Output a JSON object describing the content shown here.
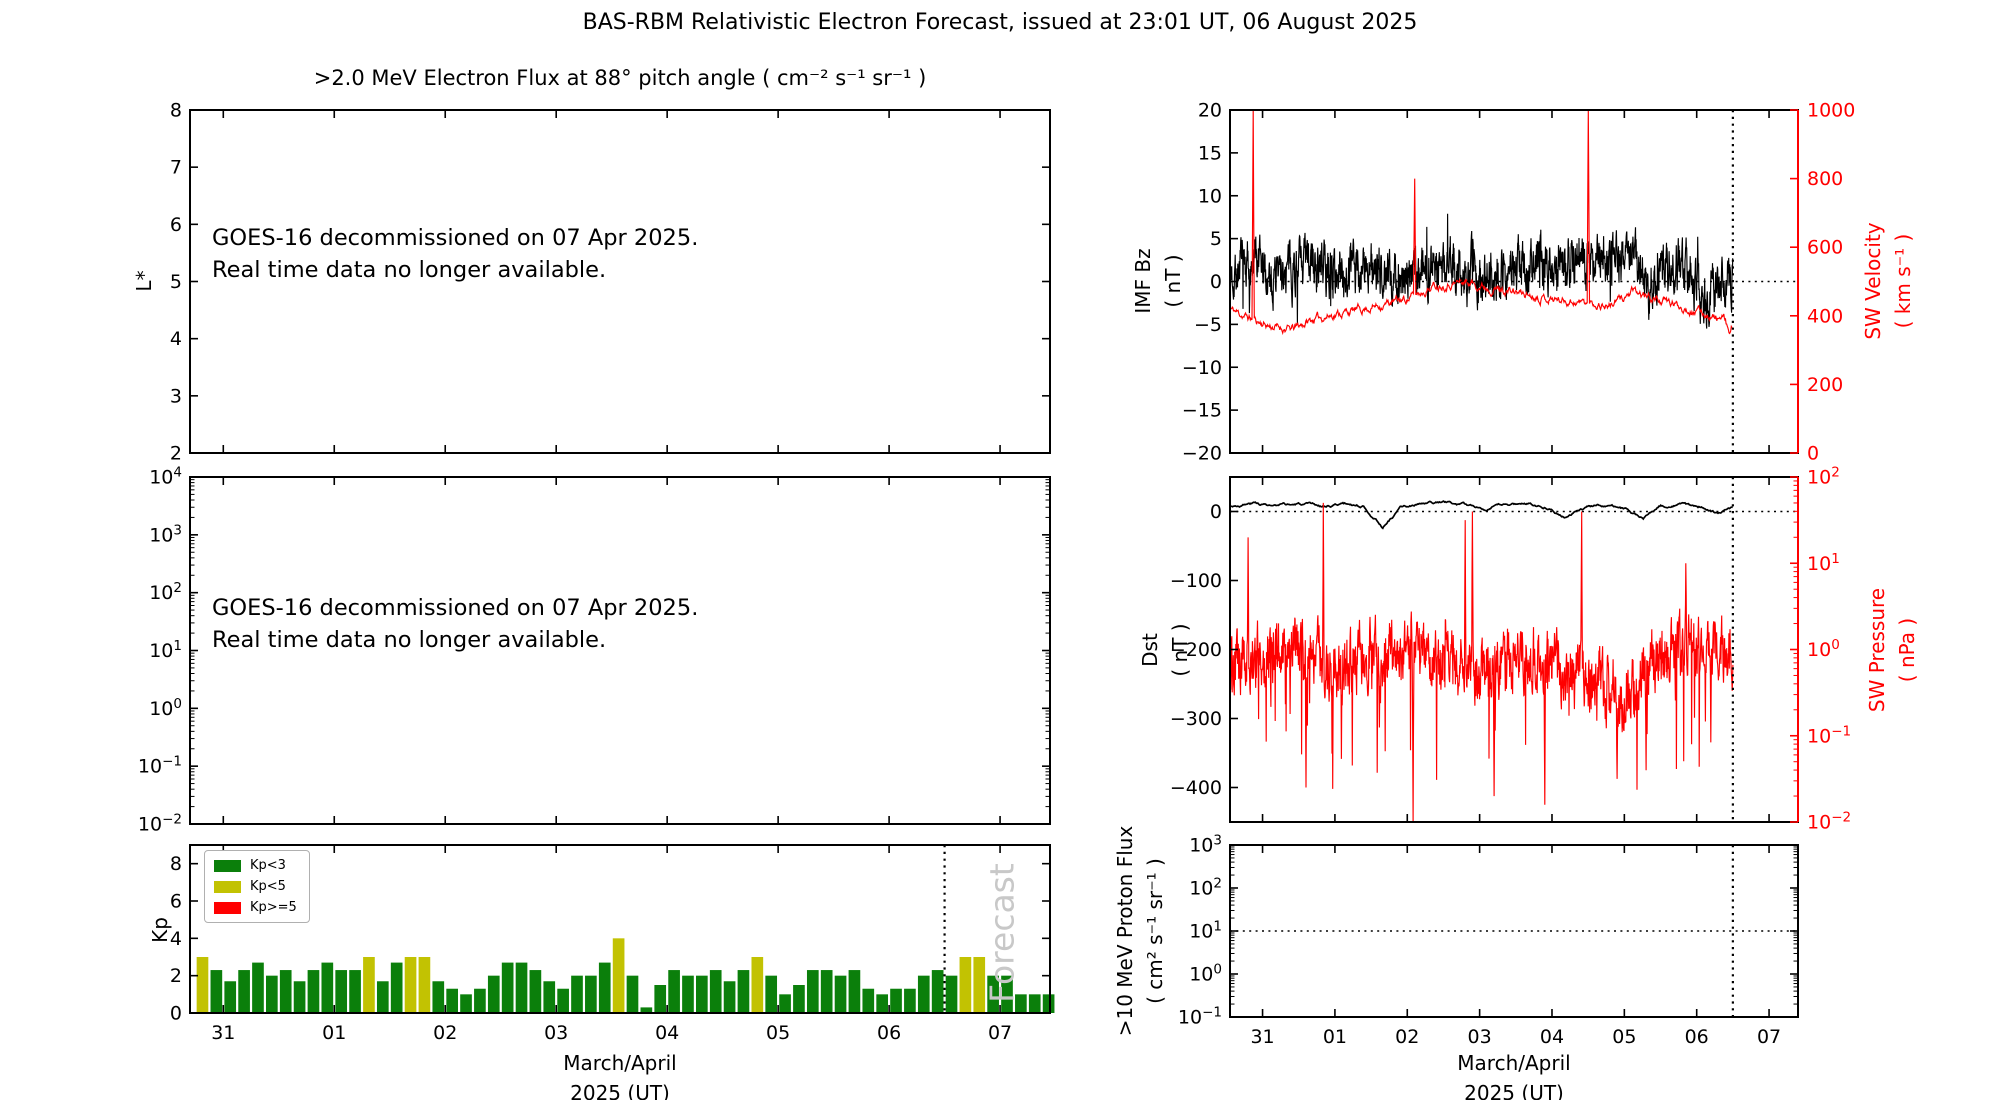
{
  "title": "BAS-RBM Relativistic Electron Forecast, issued at 23:01 UT, 06 August 2025",
  "colors": {
    "black": "#000000",
    "red": "#ff0000",
    "green": "#0b7f0b",
    "yellow": "#c2c202",
    "forecast_gray": "#c8c8c8",
    "legend_border": "#b0b0b0",
    "background": "#ffffff"
  },
  "x_axis": {
    "tick_labels": [
      "31",
      "01",
      "02",
      "03",
      "04",
      "05",
      "06",
      "07"
    ],
    "tick_days": [
      31,
      32,
      33,
      34,
      35,
      36,
      37,
      38
    ],
    "label_line1": "March/April",
    "label_line2": "2025 (UT)",
    "forecast_divider_day": 37.5
  },
  "panels": {
    "electron_flux": {
      "subtitle": ">2.0 MeV Electron Flux at 88° pitch angle ( cm⁻² s⁻¹ sr⁻¹ )",
      "ylabel": "L*",
      "ytick_values": [
        8,
        7,
        6,
        5,
        4,
        3,
        2
      ],
      "ylim": [
        2,
        8
      ],
      "message_line1": "GOES-16 decommissioned on 07 Apr 2025.",
      "message_line2": "Real time data no longer available."
    },
    "electron_flux_log": {
      "ytick_exps": [
        4,
        3,
        2,
        1,
        0,
        -1,
        -2
      ],
      "ylim_exp": [
        -2,
        4
      ],
      "message_line1": "GOES-16 decommissioned on 07 Apr 2025.",
      "message_line2": "Real time data no longer available."
    },
    "kp": {
      "ylabel": "Kp",
      "ytick_values": [
        0,
        2,
        4,
        6,
        8
      ],
      "ylim": [
        0,
        9
      ],
      "legend": [
        {
          "label": "Kp<3",
          "color_key": "green"
        },
        {
          "label": "Kp<5",
          "color_key": "yellow"
        },
        {
          "label": "Kp>=5",
          "color_key": "red"
        }
      ],
      "watermark": "Forecast"
    },
    "imf": {
      "ylabel_line1": "IMF Bz",
      "ylabel_line2": "( nT )",
      "ytick_values": [
        20,
        15,
        10,
        5,
        0,
        -5,
        -10,
        -15,
        -20
      ],
      "ylim": [
        -20,
        20
      ],
      "zero_line": 0,
      "right": {
        "label_line1": "SW Velocity",
        "label_line2": "( km s⁻¹ )",
        "ytick_values": [
          1000,
          800,
          600,
          400,
          200,
          0
        ],
        "ylim": [
          0,
          1000
        ]
      }
    },
    "dst": {
      "ylabel_line1": "Dst",
      "ylabel_line2": "( nT )",
      "ytick_values": [
        0,
        -100,
        -200,
        -300,
        -400
      ],
      "ylim": [
        -450,
        50
      ],
      "zero_line": 0,
      "right": {
        "label_line1": "SW Pressure",
        "label_line2": "( nPa )",
        "ytick_exps": [
          2,
          1,
          0,
          -1,
          -2
        ],
        "ylim_exp": [
          -2,
          2
        ]
      }
    },
    "proton": {
      "ylabel_line1": ">10 MeV Proton Flux",
      "ylabel_line2": "( cm² s⁻¹ sr⁻¹ )",
      "ytick_exps": [
        3,
        2,
        1,
        0,
        -1
      ],
      "ylim_exp": [
        -1,
        3
      ],
      "threshold_exp": 1
    }
  },
  "chart_data": [
    {
      "panel": "electron_flux",
      "type": "line",
      "series": [],
      "title": ">2.0 MeV Electron Flux at 88° pitch angle ( cm⁻² s⁻¹ sr⁻¹ )",
      "ylabel": "L*",
      "ylim": [
        2,
        8
      ],
      "note": "empty panel - GOES-16 decommissioned on 07 Apr 2025, real time data no longer available"
    },
    {
      "panel": "electron_flux_log",
      "type": "line",
      "series": [],
      "ylim_log_exp": [
        -2,
        4
      ],
      "note": "empty panel - GOES-16 decommissioned on 07 Apr 2025, real time data no longer available"
    },
    {
      "panel": "kp",
      "type": "bar",
      "ylabel": "Kp",
      "ylim": [
        0,
        9
      ],
      "x_start_day": 30.75,
      "bar_width_day": 0.125,
      "thresholds": {
        "yellow_min": 3,
        "red_min": 5
      },
      "forecast_start_day": 37.5,
      "values": [
        3.0,
        2.3,
        1.7,
        2.3,
        2.7,
        2.0,
        2.3,
        1.7,
        2.3,
        2.7,
        2.3,
        2.3,
        3.0,
        1.7,
        2.7,
        3.0,
        3.0,
        1.7,
        1.3,
        1.0,
        1.3,
        2.0,
        2.7,
        2.7,
        2.3,
        1.7,
        1.3,
        2.0,
        2.0,
        2.7,
        4.0,
        2.0,
        0.3,
        1.5,
        2.3,
        2.0,
        2.0,
        2.3,
        1.7,
        2.3,
        3.0,
        2.0,
        1.0,
        1.5,
        2.3,
        2.3,
        2.0,
        2.3,
        1.3,
        1.0,
        1.3,
        1.3,
        2.0,
        2.3,
        2.0,
        3.0,
        3.0,
        2.0,
        2.0,
        1.0,
        1.0,
        1.0
      ]
    },
    {
      "panel": "imf",
      "type": "line",
      "x_range": [
        30.55,
        37.5
      ],
      "series": [
        {
          "name": "IMF Bz",
          "units": "nT",
          "axis": "left",
          "color_key": "black",
          "control_points": [
            [
              30.55,
              1.0
            ],
            [
              30.8,
              2.0
            ],
            [
              31.1,
              0.5
            ],
            [
              31.35,
              1.5
            ],
            [
              31.7,
              2.0
            ],
            [
              32.0,
              1.0
            ],
            [
              32.4,
              1.5
            ],
            [
              32.8,
              0.5
            ],
            [
              33.2,
              1.5
            ],
            [
              33.6,
              2.0
            ],
            [
              34.0,
              0.5
            ],
            [
              34.4,
              1.5
            ],
            [
              34.8,
              2.0
            ],
            [
              35.2,
              2.5
            ],
            [
              35.6,
              3.0
            ],
            [
              35.9,
              2.0
            ],
            [
              36.1,
              4.0
            ],
            [
              36.35,
              -1.0
            ],
            [
              36.6,
              2.0
            ],
            [
              36.9,
              2.0
            ],
            [
              37.05,
              -1.5
            ],
            [
              37.25,
              -2.0
            ],
            [
              37.5,
              0.5
            ]
          ],
          "noise_amp": 3.1,
          "noise_seed": 7,
          "sample_step": 0.004,
          "clamp": [
            -9.2,
            9.5
          ]
        },
        {
          "name": "SW Velocity",
          "units": "km s⁻¹",
          "axis": "right",
          "color_key": "red",
          "control_points": [
            [
              30.55,
              420
            ],
            [
              30.8,
              395
            ],
            [
              31.1,
              370
            ],
            [
              31.4,
              360
            ],
            [
              31.7,
              390
            ],
            [
              32.0,
              405
            ],
            [
              32.5,
              425
            ],
            [
              33.0,
              450
            ],
            [
              33.4,
              490
            ],
            [
              33.8,
              500
            ],
            [
              34.2,
              480
            ],
            [
              34.6,
              465
            ],
            [
              35.0,
              450
            ],
            [
              35.4,
              440
            ],
            [
              35.8,
              430
            ],
            [
              36.1,
              468
            ],
            [
              36.5,
              445
            ],
            [
              36.9,
              420
            ],
            [
              37.2,
              400
            ],
            [
              37.4,
              385
            ],
            [
              37.46,
              335
            ],
            [
              37.5,
              375
            ]
          ],
          "noise_amp": 11,
          "noise_seed": 11,
          "sample_step": 0.008,
          "clamp": [
            300,
            1005
          ],
          "spikes": [
            [
              30.87,
              1000
            ],
            [
              33.1,
              800
            ],
            [
              35.5,
              1000
            ]
          ]
        }
      ]
    },
    {
      "panel": "dst",
      "type": "line",
      "x_range": [
        30.55,
        37.5
      ],
      "series": [
        {
          "name": "Dst",
          "units": "nT",
          "axis": "left",
          "color_key": "black",
          "control_points": [
            [
              30.55,
              8
            ],
            [
              30.9,
              12
            ],
            [
              31.2,
              7
            ],
            [
              31.5,
              10
            ],
            [
              31.8,
              6
            ],
            [
              32.1,
              12
            ],
            [
              32.4,
              8
            ],
            [
              32.66,
              -22
            ],
            [
              32.9,
              5
            ],
            [
              33.2,
              10
            ],
            [
              33.5,
              13
            ],
            [
              33.8,
              8
            ],
            [
              34.1,
              5
            ],
            [
              34.4,
              10
            ],
            [
              34.7,
              12
            ],
            [
              35.0,
              6
            ],
            [
              35.2,
              -8
            ],
            [
              35.5,
              8
            ],
            [
              35.8,
              10
            ],
            [
              36.0,
              4
            ],
            [
              36.26,
              -10
            ],
            [
              36.5,
              8
            ],
            [
              36.8,
              10
            ],
            [
              37.1,
              6
            ],
            [
              37.3,
              -5
            ],
            [
              37.5,
              6
            ]
          ],
          "noise_amp": 1.6,
          "noise_seed": 3,
          "sample_step": 0.012,
          "clamp": [
            -26,
            20
          ]
        },
        {
          "name": "SW Pressure",
          "units": "nPa",
          "axis": "right",
          "color_key": "red",
          "log10": true,
          "control_points": [
            [
              30.55,
              -0.15
            ],
            [
              31.0,
              -0.05
            ],
            [
              31.5,
              0.0
            ],
            [
              32.0,
              -0.2
            ],
            [
              32.5,
              -0.1
            ],
            [
              33.0,
              0.0
            ],
            [
              33.5,
              -0.15
            ],
            [
              34.0,
              -0.3
            ],
            [
              34.5,
              -0.05
            ],
            [
              35.0,
              -0.15
            ],
            [
              35.5,
              -0.35
            ],
            [
              36.0,
              -0.55
            ],
            [
              36.3,
              -0.25
            ],
            [
              36.6,
              -0.05
            ],
            [
              37.0,
              0.05
            ],
            [
              37.5,
              -0.05
            ]
          ],
          "noise_amp": 0.42,
          "noise_seed": 5,
          "sample_step": 0.005,
          "clamp": [
            -2,
            2
          ],
          "spikes": [
            [
              30.8,
              1.3
            ],
            [
              31.84,
              1.7
            ],
            [
              33.8,
              1.5
            ],
            [
              33.9,
              1.6
            ],
            [
              35.41,
              1.6
            ],
            [
              36.85,
              1.0
            ]
          ],
          "dips": [
            [
              31.6,
              -1.6
            ],
            [
              33.08,
              -2.0
            ],
            [
              34.2,
              -1.7
            ],
            [
              34.9,
              -1.8
            ],
            [
              35.9,
              -1.5
            ],
            [
              36.3,
              -1.4
            ]
          ],
          "dip_prob": 0.04,
          "dip_extra": 1.3
        }
      ]
    },
    {
      "panel": "proton",
      "type": "line",
      "series": [],
      "threshold_value": 10,
      "note": "empty panel - dotted threshold line at 10^1, forecast divider at Apr 6.5"
    }
  ]
}
